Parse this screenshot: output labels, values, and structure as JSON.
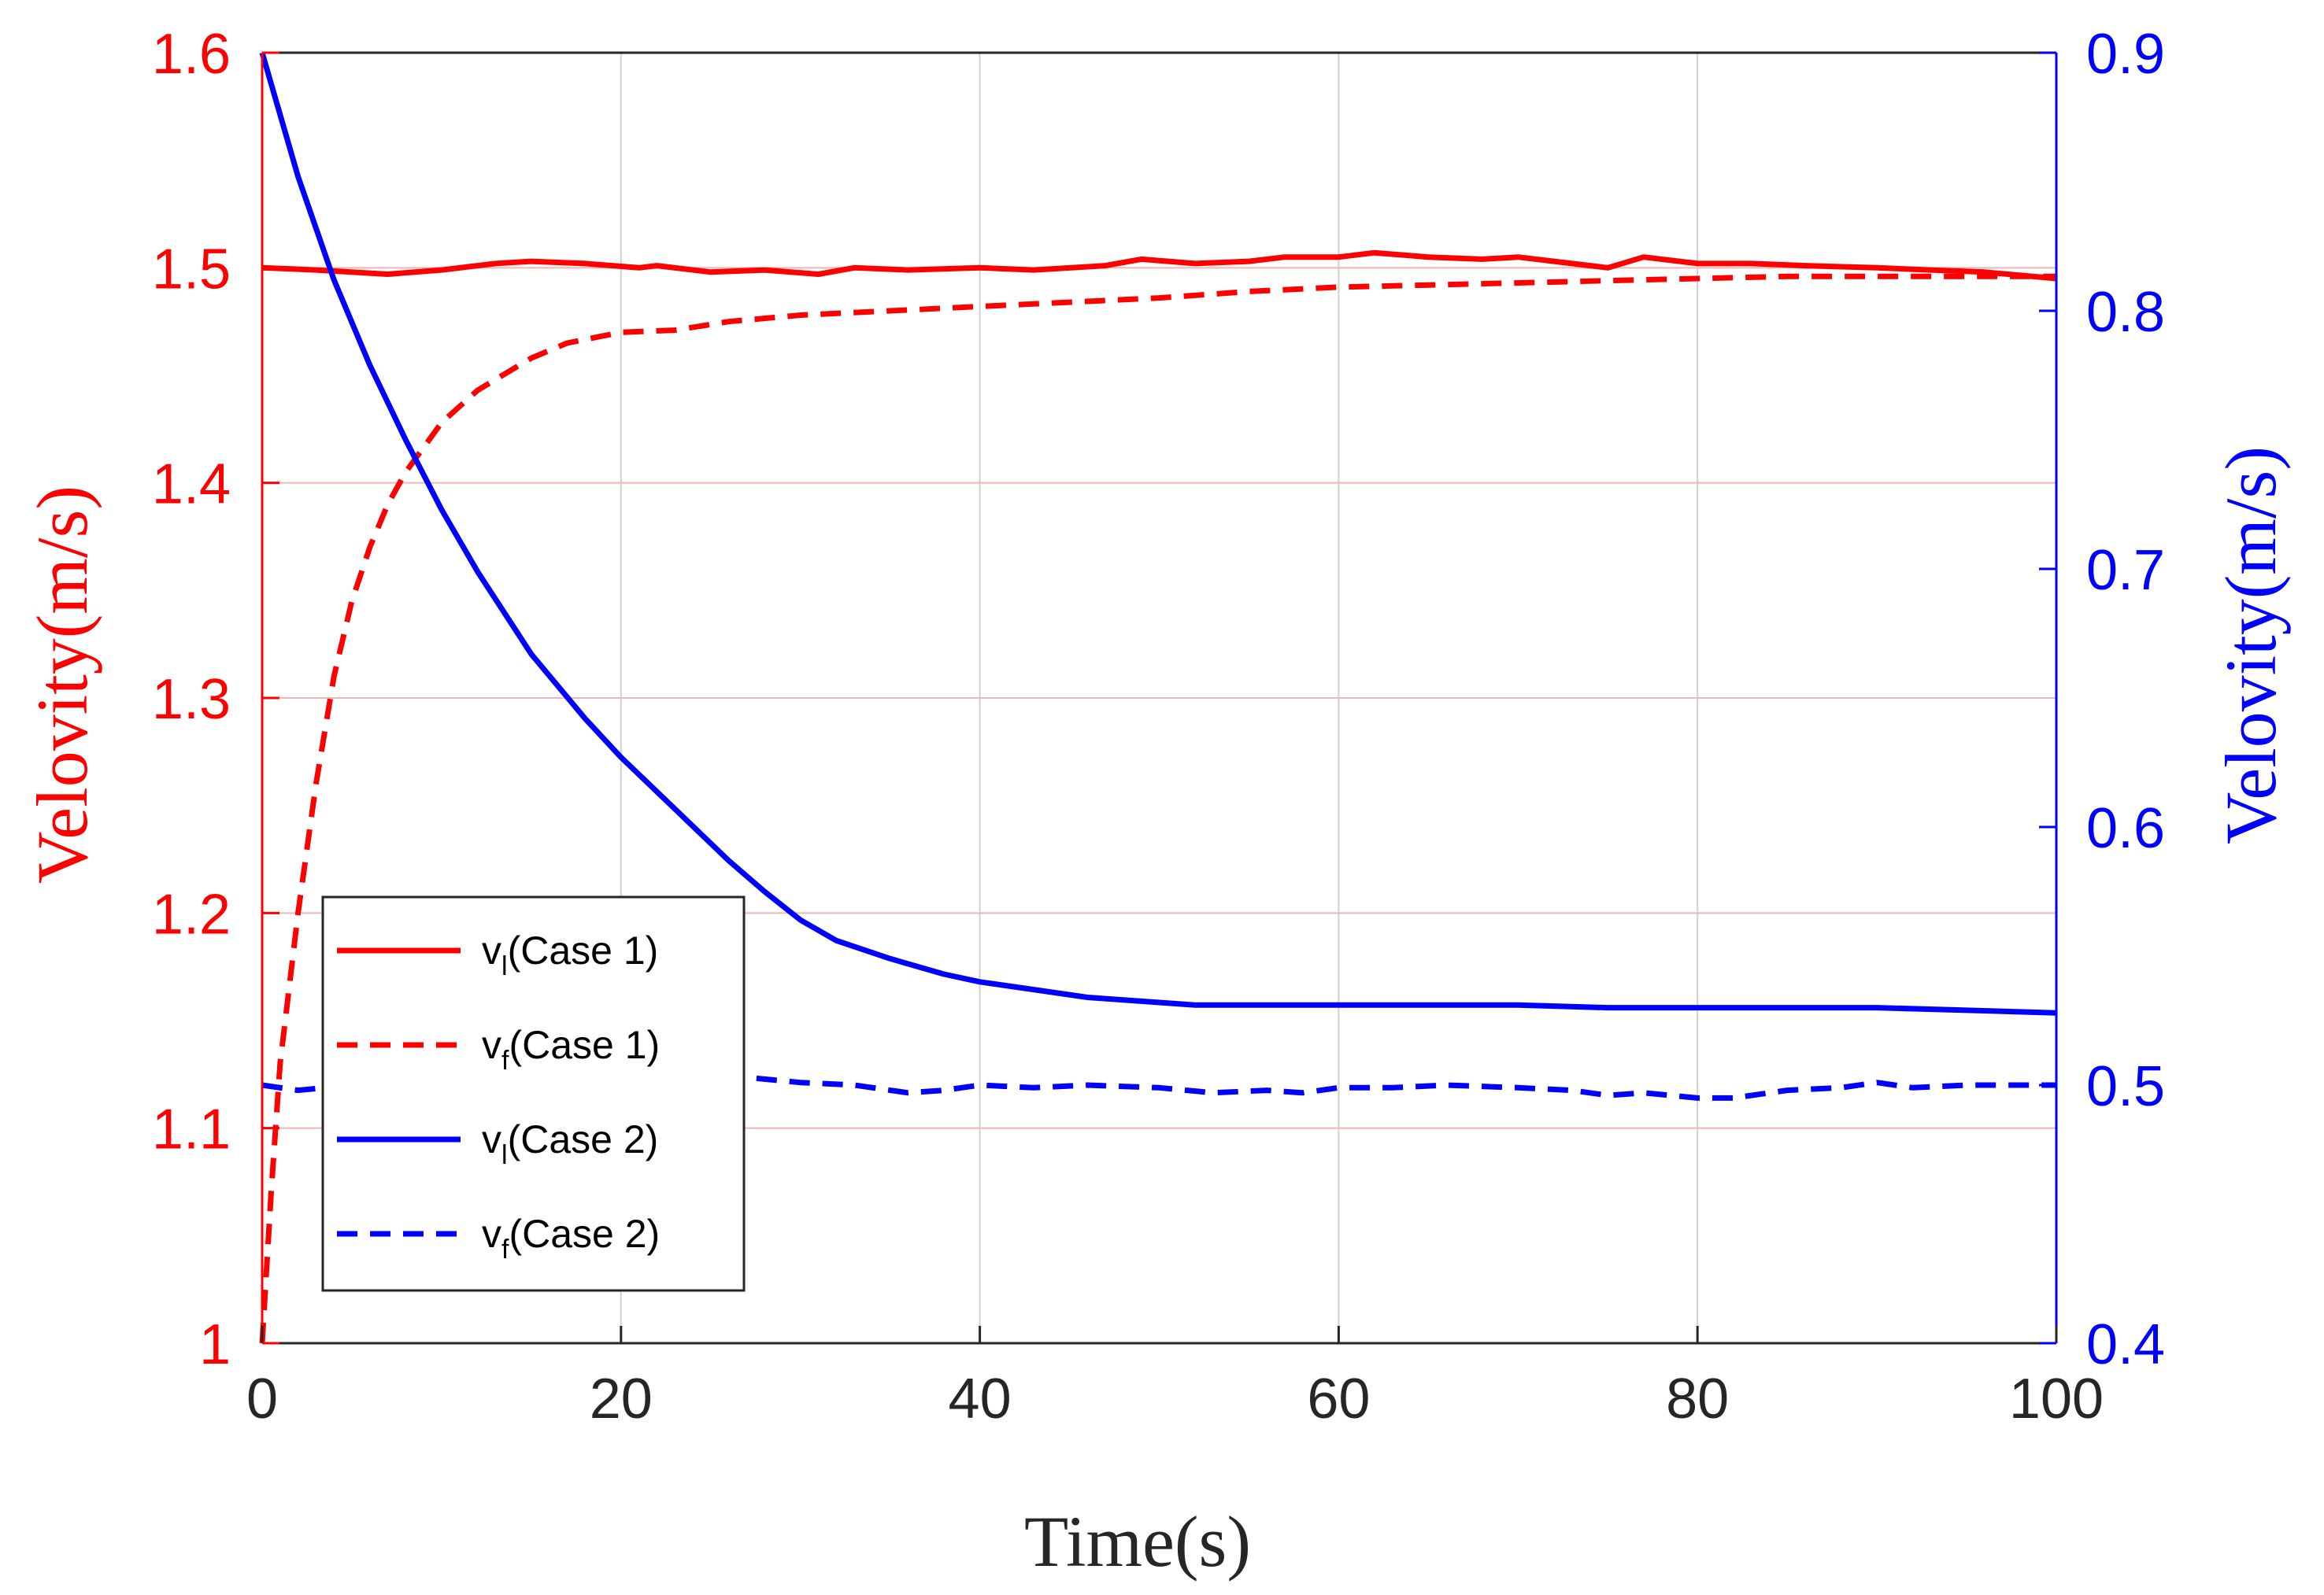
{
  "chart_data": {
    "type": "line",
    "title": "",
    "xlabel": "Time(s)",
    "ylabel_left": "Velovity(m/s)",
    "ylabel_right": "Velovity(m/s)",
    "xlim": [
      0,
      100
    ],
    "ylim_left": [
      1,
      1.6
    ],
    "ylim_right": [
      0.4,
      0.9
    ],
    "x_ticks": [
      "0",
      "20",
      "40",
      "60",
      "80",
      "100"
    ],
    "y_left_ticks": [
      "1",
      "1.1",
      "1.2",
      "1.3",
      "1.4",
      "1.5",
      "1.6"
    ],
    "y_right_ticks": [
      "0.4",
      "0.5",
      "0.6",
      "0.7",
      "0.8",
      "0.9"
    ],
    "grid": true,
    "legend_position": "lower-left",
    "colors": {
      "left_axis": "#ff0000",
      "right_axis": "#0000ff",
      "grid_left": "#f5b5b5",
      "grid_x": "#d0d0d0"
    },
    "series": [
      {
        "name": "v_l(Case 1)",
        "label_main": "v",
        "label_sub": "l",
        "label_rest": "(Case 1)",
        "axis": "left",
        "color": "#ff0000",
        "dash": "solid",
        "x": [
          0,
          3,
          7,
          10,
          13,
          15,
          18,
          21,
          22,
          25,
          28,
          31,
          33,
          36,
          40,
          43,
          47,
          49,
          52,
          55,
          57,
          60,
          62,
          65,
          68,
          70,
          72,
          75,
          77,
          80,
          83,
          86,
          90,
          93,
          96,
          100
        ],
        "y": [
          1.5,
          1.499,
          1.497,
          1.499,
          1.502,
          1.503,
          1.502,
          1.5,
          1.501,
          1.498,
          1.499,
          1.497,
          1.5,
          1.499,
          1.5,
          1.499,
          1.501,
          1.504,
          1.502,
          1.503,
          1.505,
          1.505,
          1.507,
          1.505,
          1.504,
          1.505,
          1.503,
          1.5,
          1.505,
          1.502,
          1.502,
          1.501,
          1.5,
          1.499,
          1.498,
          1.495
        ]
      },
      {
        "name": "v_f(Case 1)",
        "label_main": "v",
        "label_sub": "f",
        "label_rest": "(Case 1)",
        "axis": "left",
        "color": "#ff0000",
        "dash": "dashed",
        "x": [
          0,
          0.5,
          1,
          2,
          3,
          4,
          5,
          6,
          7,
          8,
          10,
          12,
          15,
          17,
          20,
          23,
          26,
          30,
          35,
          40,
          45,
          50,
          55,
          60,
          65,
          70,
          75,
          80,
          85,
          90,
          95,
          100
        ],
        "y": [
          1.0,
          1.07,
          1.13,
          1.2,
          1.26,
          1.31,
          1.345,
          1.37,
          1.39,
          1.405,
          1.428,
          1.443,
          1.458,
          1.465,
          1.47,
          1.471,
          1.475,
          1.478,
          1.48,
          1.482,
          1.484,
          1.486,
          1.489,
          1.491,
          1.492,
          1.493,
          1.494,
          1.495,
          1.496,
          1.496,
          1.496,
          1.496
        ]
      },
      {
        "name": "v_l(Case 2)",
        "label_main": "v",
        "label_sub": "l",
        "label_rest": "(Case 2)",
        "axis": "right",
        "color": "#0000ff",
        "dash": "solid",
        "x": [
          0,
          2,
          4,
          6,
          8,
          10,
          12,
          15,
          18,
          20,
          23,
          26,
          28,
          30,
          32,
          35,
          38,
          40,
          43,
          46,
          50,
          52,
          55,
          60,
          65,
          70,
          75,
          80,
          85,
          90,
          95,
          100
        ],
        "y": [
          0.9,
          0.852,
          0.812,
          0.779,
          0.75,
          0.723,
          0.699,
          0.667,
          0.642,
          0.627,
          0.607,
          0.587,
          0.575,
          0.564,
          0.556,
          0.549,
          0.543,
          0.54,
          0.537,
          0.534,
          0.532,
          0.531,
          0.531,
          0.531,
          0.531,
          0.531,
          0.53,
          0.53,
          0.53,
          0.53,
          0.529,
          0.528
        ]
      },
      {
        "name": "v_f(Case 2)",
        "label_main": "v",
        "label_sub": "f",
        "label_rest": "(Case 2)",
        "axis": "right",
        "color": "#0000ff",
        "dash": "dashed",
        "x": [
          0,
          2,
          5,
          8,
          10,
          13,
          16,
          18,
          20,
          23,
          25,
          27,
          30,
          33,
          36,
          38,
          40,
          43,
          46,
          50,
          53,
          56,
          58,
          60,
          63,
          66,
          70,
          73,
          75,
          77,
          80,
          82,
          85,
          88,
          90,
          92,
          95,
          98,
          100
        ],
        "y": [
          0.5,
          0.498,
          0.5,
          0.499,
          0.499,
          0.501,
          0.5,
          0.501,
          0.501,
          0.5,
          0.501,
          0.503,
          0.501,
          0.5,
          0.497,
          0.498,
          0.5,
          0.499,
          0.5,
          0.499,
          0.497,
          0.498,
          0.497,
          0.499,
          0.499,
          0.5,
          0.499,
          0.498,
          0.496,
          0.497,
          0.495,
          0.495,
          0.498,
          0.499,
          0.501,
          0.499,
          0.5,
          0.5,
          0.5
        ]
      }
    ]
  }
}
